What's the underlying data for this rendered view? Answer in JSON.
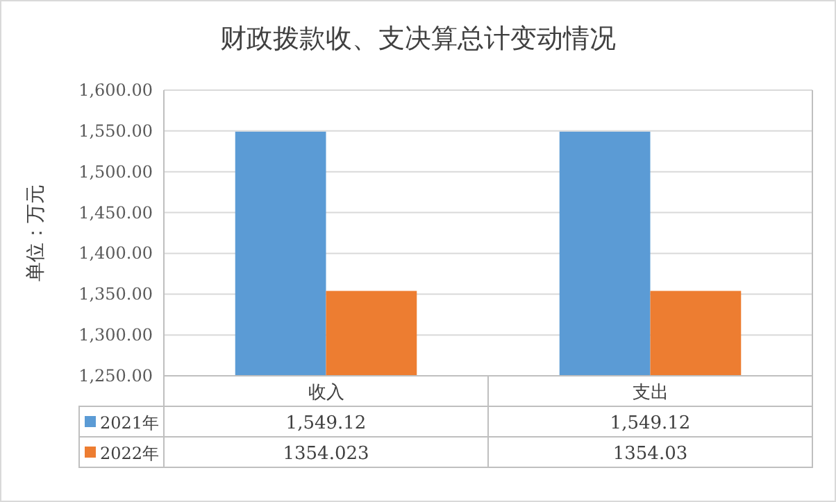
{
  "chart_data": {
    "type": "bar",
    "title": "财政拨款收、支决算总计变动情况",
    "ylabel": "单位：万元",
    "categories": [
      "收入",
      "支出"
    ],
    "series": [
      {
        "name": "2021年",
        "color": "#5b9bd5",
        "values": [
          1549.12,
          1549.12
        ],
        "value_labels": [
          "1,549.12",
          "1,549.12"
        ]
      },
      {
        "name": "2022年",
        "color": "#ed7d31",
        "values": [
          1354.023,
          1354.03
        ],
        "value_labels": [
          "1354.023",
          "1354.03"
        ]
      }
    ],
    "ylim": [
      1250,
      1600
    ],
    "yticks": [
      {
        "value": 1250,
        "label": "1,250.00"
      },
      {
        "value": 1300,
        "label": "1,300.00"
      },
      {
        "value": 1350,
        "label": "1,350.00"
      },
      {
        "value": 1400,
        "label": "1,400.00"
      },
      {
        "value": 1450,
        "label": "1,450.00"
      },
      {
        "value": 1500,
        "label": "1,500.00"
      },
      {
        "value": 1550,
        "label": "1,550.00"
      },
      {
        "value": 1600,
        "label": "1,600.00"
      }
    ],
    "grid": "y",
    "legend": "bottom"
  }
}
